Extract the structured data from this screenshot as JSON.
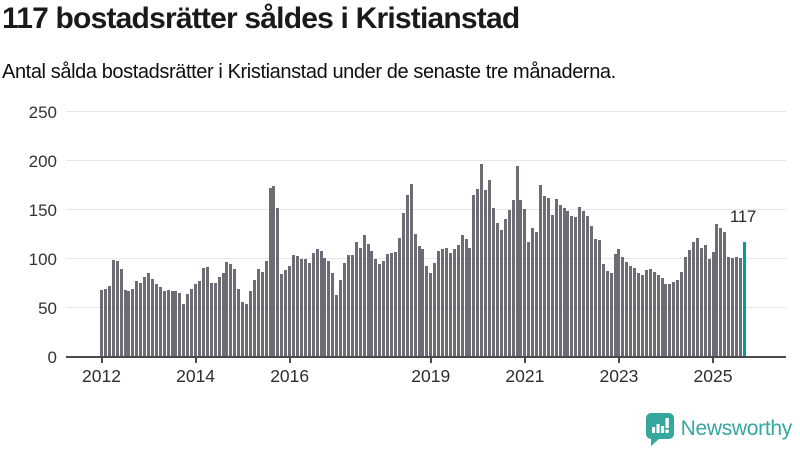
{
  "header": {
    "title": "117 bostadsrätter såldes i Kristianstad",
    "subtitle": "Antal sålda bostadsrätter i Kristianstad under de senaste tre månaderna."
  },
  "chart_data": {
    "type": "bar",
    "title": "117 bostadsrätter såldes i Kristianstad",
    "subtitle": "Antal sålda bostadsrätter i Kristianstad under de senaste tre månaderna.",
    "frequency": "monthly",
    "x_start": "2012-01",
    "x_end": "2025-09",
    "ylim": [
      0,
      250
    ],
    "y_ticks": [
      0,
      50,
      100,
      150,
      200,
      250
    ],
    "x_tick_years": [
      "2012",
      "2014",
      "2016",
      "2019",
      "2021",
      "2023",
      "2025"
    ],
    "grid": "horizontal",
    "bar_color": "#6c6c74",
    "values": [
      68,
      69,
      72,
      99,
      98,
      90,
      68,
      67,
      69,
      78,
      76,
      82,
      86,
      80,
      74,
      71,
      67,
      68,
      67,
      67,
      65,
      54,
      64,
      69,
      74,
      78,
      91,
      92,
      76,
      76,
      82,
      86,
      97,
      95,
      90,
      69,
      56,
      54,
      67,
      79,
      90,
      87,
      98,
      172,
      174,
      152,
      85,
      89,
      93,
      104,
      103,
      100,
      100,
      96,
      106,
      110,
      108,
      101,
      98,
      86,
      63,
      79,
      96,
      104,
      104,
      117,
      111,
      124,
      115,
      108,
      100,
      95,
      98,
      105,
      106,
      107,
      121,
      147,
      165,
      177,
      126,
      113,
      110,
      93,
      86,
      96,
      108,
      110,
      111,
      106,
      110,
      114,
      124,
      120,
      111,
      165,
      171,
      197,
      170,
      181,
      152,
      137,
      130,
      141,
      150,
      160,
      195,
      160,
      151,
      117,
      132,
      128,
      176,
      164,
      162,
      145,
      161,
      155,
      152,
      149,
      144,
      143,
      153,
      149,
      144,
      134,
      120,
      119,
      95,
      88,
      86,
      105,
      110,
      102,
      97,
      93,
      91,
      86,
      84,
      89,
      90,
      87,
      84,
      81,
      75,
      74,
      77,
      79,
      87,
      102,
      109,
      117,
      121,
      111,
      114,
      100,
      107,
      136,
      132,
      128,
      102,
      101,
      102,
      101,
      117
    ],
    "highlight": {
      "index": 164,
      "value": 117,
      "label": "117",
      "color": "#00a09a"
    }
  },
  "branding": {
    "name": "Newsworthy",
    "color": "#35a79e",
    "icon": "bar-chart-speech-bubble"
  }
}
